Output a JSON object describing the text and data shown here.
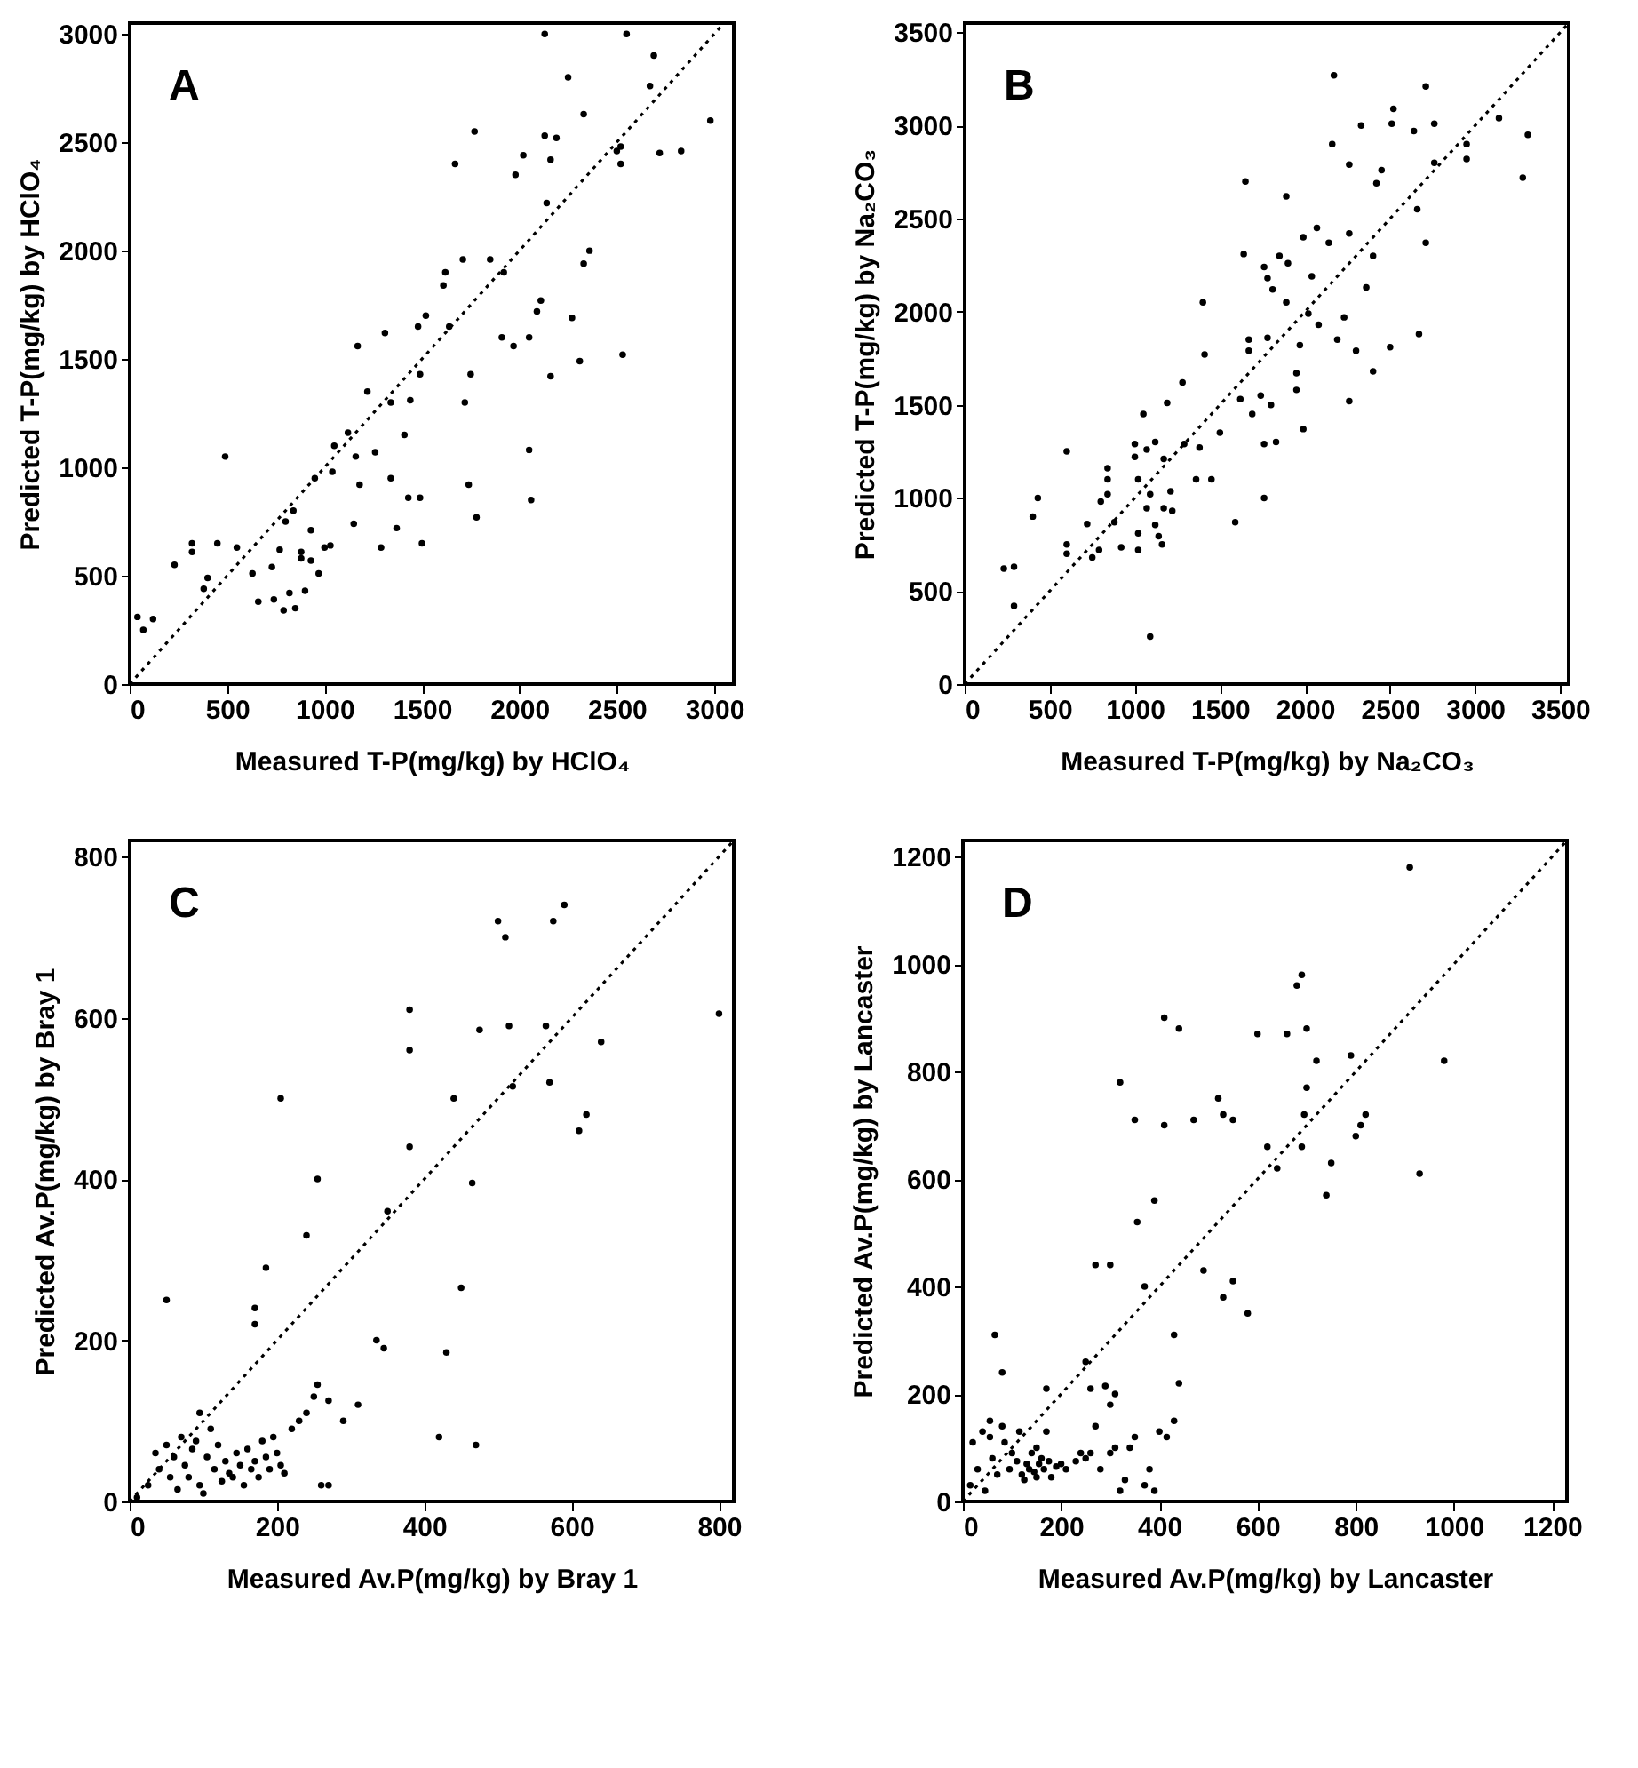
{
  "chart_data": [
    {
      "type": "scatter",
      "xlabel": "Measured T-P(mg/kg) by HClO₄",
      "ylabel": "Predicted T-P(mg/kg) by HClO₄",
      "annotations": [
        "A"
      ],
      "xlim": [
        0,
        3100
      ],
      "ylim": [
        0,
        3050
      ],
      "xticks": [
        0,
        500,
        1000,
        1500,
        2000,
        2500,
        3000
      ],
      "yticks": [
        0,
        500,
        1000,
        1500,
        2000,
        2500,
        3000
      ],
      "series": [
        {
          "marker": "circle",
          "color": "#000000",
          "x": [
            40,
            120,
            70,
            230,
            320,
            320,
            450,
            400,
            380,
            550,
            490,
            630,
            660,
            730,
            740,
            790,
            820,
            850,
            770,
            800,
            840,
            880,
            900,
            880,
            930,
            970,
            930,
            950,
            1000,
            1030,
            1040,
            1050,
            1120,
            1150,
            1160,
            1170,
            1180,
            1220,
            1260,
            1290,
            1310,
            1340,
            1340,
            1370,
            1410,
            1430,
            1440,
            1490,
            1500,
            1490,
            1480,
            1520,
            1610,
            1620,
            1640,
            1670,
            1710,
            1720,
            1740,
            1770,
            1780,
            1750,
            1850,
            1920,
            1910,
            1970,
            1980,
            2020,
            2050,
            2060,
            2050,
            2090,
            2110,
            2130,
            2140,
            2160,
            2190,
            2160,
            2270,
            2310,
            2330,
            2360,
            2330,
            2250,
            2130,
            2520,
            2500,
            2530,
            2520,
            2550,
            2670,
            2690,
            2720,
            2830,
            2980
          ],
          "values": [
            310,
            300,
            250,
            550,
            650,
            610,
            650,
            490,
            440,
            630,
            1050,
            510,
            380,
            540,
            390,
            340,
            420,
            350,
            620,
            750,
            800,
            610,
            430,
            580,
            570,
            510,
            710,
            950,
            630,
            640,
            980,
            1100,
            1160,
            740,
            1050,
            1560,
            920,
            1350,
            1070,
            630,
            1620,
            1300,
            950,
            720,
            1150,
            860,
            1310,
            1430,
            650,
            860,
            1650,
            1700,
            1840,
            1900,
            1650,
            2400,
            1960,
            1300,
            920,
            2550,
            770,
            1430,
            1960,
            1900,
            1600,
            1560,
            2350,
            2440,
            1080,
            850,
            1600,
            1720,
            1770,
            2530,
            2220,
            2420,
            2520,
            1420,
            1690,
            1490,
            1940,
            2000,
            2630,
            2800,
            3000,
            2480,
            2460,
            1520,
            2400,
            3000,
            2760,
            2900,
            2450,
            2460,
            2600
          ]
        },
        {
          "type": "line",
          "color": "#000000",
          "line_style": "dotted",
          "x": [
            0,
            3050
          ],
          "values": [
            0,
            3050
          ]
        }
      ]
    },
    {
      "type": "scatter",
      "xlabel": "Measured T-P(mg/kg) by Na₂CO₃",
      "ylabel": "Predicted T-P(mg/kg) by Na₂CO₃",
      "annotations": [
        "B"
      ],
      "xlim": [
        0,
        3550
      ],
      "ylim": [
        0,
        3550
      ],
      "xticks": [
        0,
        500,
        1000,
        1500,
        2000,
        2500,
        3000,
        3500
      ],
      "yticks": [
        0,
        500,
        1000,
        1500,
        2000,
        2500,
        3000,
        3500
      ],
      "series": [
        {
          "marker": "circle",
          "color": "#000000",
          "x": [
            230,
            290,
            290,
            400,
            430,
            600,
            600,
            600,
            720,
            750,
            790,
            840,
            840,
            840,
            800,
            880,
            920,
            1000,
            1000,
            1020,
            1020,
            1020,
            1050,
            1070,
            1070,
            1090,
            1090,
            1120,
            1120,
            1140,
            1160,
            1170,
            1170,
            1210,
            1220,
            1190,
            1280,
            1290,
            1360,
            1380,
            1400,
            1410,
            1450,
            1500,
            1590,
            1620,
            1640,
            1650,
            1670,
            1670,
            1690,
            1740,
            1760,
            1760,
            1760,
            1780,
            1780,
            1800,
            1810,
            1830,
            1850,
            1890,
            1890,
            1900,
            1950,
            1950,
            1970,
            1990,
            1990,
            2040,
            2020,
            2080,
            2070,
            2140,
            2160,
            2170,
            2190,
            2230,
            2260,
            2260,
            2260,
            2300,
            2330,
            2360,
            2400,
            2400,
            2420,
            2450,
            2500,
            2520,
            2510,
            2640,
            2660,
            2670,
            2710,
            2710,
            2760,
            2760,
            2950,
            2950,
            3140,
            3280,
            3310
          ],
          "values": [
            620,
            630,
            420,
            900,
            1000,
            1250,
            700,
            750,
            860,
            680,
            720,
            1160,
            1100,
            1020,
            980,
            870,
            735,
            1290,
            1220,
            1100,
            810,
            720,
            1450,
            1260,
            945,
            255,
            1020,
            855,
            1300,
            795,
            750,
            945,
            1210,
            1035,
            930,
            1510,
            1620,
            1290,
            1100,
            1270,
            2050,
            1770,
            1100,
            1350,
            870,
            1530,
            2310,
            2700,
            1790,
            1850,
            1450,
            1550,
            1290,
            1000,
            2240,
            2180,
            1860,
            1500,
            2120,
            1300,
            2300,
            2620,
            2050,
            2260,
            1670,
            1580,
            1820,
            1370,
            2400,
            2190,
            1990,
            1930,
            2450,
            2370,
            2900,
            3270,
            1850,
            1970,
            1520,
            2420,
            2790,
            1790,
            3000,
            2130,
            2300,
            1680,
            2690,
            2760,
            1810,
            3090,
            3010,
            2970,
            2550,
            1880,
            2370,
            3210,
            3010,
            2800,
            2900,
            2820,
            3040,
            2720,
            2950
          ]
        },
        {
          "type": "line",
          "color": "#000000",
          "line_style": "dotted",
          "x": [
            0,
            3550
          ],
          "values": [
            0,
            3550
          ]
        }
      ]
    },
    {
      "type": "scatter",
      "xlabel": "Measured Av.P(mg/kg) by Bray 1",
      "ylabel": "Predicted Av.P(mg/kg) by Bray 1",
      "annotations": [
        "C"
      ],
      "xlim": [
        0,
        820
      ],
      "ylim": [
        0,
        820
      ],
      "xticks": [
        0,
        200,
        400,
        600,
        800
      ],
      "yticks": [
        0,
        200,
        400,
        600,
        800
      ],
      "series": [
        {
          "marker": "circle",
          "color": "#000000",
          "x": [
            10,
            25,
            35,
            40,
            50,
            55,
            60,
            65,
            70,
            75,
            80,
            85,
            90,
            95,
            100,
            105,
            110,
            115,
            120,
            125,
            130,
            135,
            140,
            145,
            150,
            155,
            160,
            165,
            170,
            175,
            180,
            185,
            190,
            195,
            200,
            205,
            210,
            220,
            230,
            240,
            250,
            255,
            260,
            270,
            50,
            95,
            170,
            170,
            185,
            205,
            240,
            255,
            270,
            290,
            310,
            335,
            345,
            350,
            380,
            380,
            380,
            440,
            430,
            420,
            465,
            450,
            470,
            510,
            500,
            515,
            475,
            565,
            575,
            590,
            520,
            570,
            620,
            610,
            640,
            800
          ],
          "values": [
            5,
            20,
            60,
            40,
            70,
            30,
            55,
            15,
            80,
            45,
            30,
            65,
            75,
            20,
            10,
            55,
            90,
            40,
            70,
            25,
            50,
            35,
            30,
            60,
            45,
            20,
            65,
            40,
            50,
            30,
            75,
            55,
            40,
            80,
            60,
            45,
            35,
            90,
            100,
            110,
            130,
            145,
            20,
            20,
            250,
            110,
            240,
            220,
            290,
            500,
            330,
            400,
            125,
            100,
            120,
            200,
            190,
            360,
            610,
            560,
            440,
            500,
            185,
            80,
            395,
            265,
            70,
            700,
            720,
            590,
            585,
            590,
            720,
            740,
            515,
            520,
            480,
            460,
            570,
            605
          ]
        },
        {
          "type": "line",
          "color": "#000000",
          "line_style": "dotted",
          "x": [
            0,
            820
          ],
          "values": [
            0,
            820
          ]
        }
      ]
    },
    {
      "type": "scatter",
      "xlabel": "Measured Av.P(mg/kg) by Lancaster",
      "ylabel": "Predicted Av.P(mg/kg) by Lancaster",
      "annotations": [
        "D"
      ],
      "xlim": [
        0,
        1230
      ],
      "ylim": [
        0,
        1230
      ],
      "xticks": [
        0,
        200,
        400,
        600,
        800,
        1000,
        1200
      ],
      "yticks": [
        0,
        200,
        400,
        600,
        800,
        1000,
        1200
      ],
      "series": [
        {
          "marker": "circle",
          "color": "#000000",
          "x": [
            15,
            20,
            30,
            40,
            45,
            55,
            60,
            70,
            80,
            85,
            95,
            100,
            110,
            115,
            120,
            125,
            130,
            135,
            140,
            145,
            150,
            150,
            155,
            160,
            165,
            170,
            175,
            180,
            190,
            200,
            210,
            230,
            240,
            250,
            260,
            270,
            280,
            300,
            310,
            320,
            330,
            340,
            350,
            370,
            380,
            390,
            400,
            415,
            65,
            80,
            55,
            170,
            250,
            260,
            290,
            300,
            310,
            355,
            300,
            270,
            320,
            350,
            410,
            440,
            410,
            430,
            440,
            430,
            370,
            390,
            470,
            520,
            530,
            550,
            490,
            550,
            530,
            580,
            620,
            640,
            600,
            660,
            680,
            690,
            700,
            700,
            720,
            695,
            690,
            740,
            750,
            790,
            800,
            810,
            820,
            910,
            930,
            980
          ],
          "values": [
            30,
            110,
            60,
            130,
            20,
            120,
            80,
            50,
            140,
            110,
            60,
            90,
            75,
            130,
            50,
            40,
            70,
            60,
            90,
            55,
            45,
            100,
            70,
            80,
            60,
            130,
            75,
            45,
            65,
            70,
            60,
            75,
            90,
            80,
            90,
            140,
            60,
            90,
            100,
            20,
            40,
            100,
            120,
            30,
            60,
            20,
            130,
            120,
            310,
            240,
            150,
            210,
            260,
            210,
            215,
            180,
            200,
            520,
            440,
            440,
            780,
            710,
            900,
            880,
            700,
            310,
            220,
            150,
            400,
            560,
            710,
            750,
            720,
            710,
            430,
            410,
            380,
            350,
            660,
            620,
            870,
            870,
            960,
            980,
            880,
            770,
            820,
            720,
            660,
            570,
            630,
            830,
            680,
            700,
            720,
            1180,
            610,
            820
          ]
        },
        {
          "type": "line",
          "color": "#000000",
          "line_style": "dotted",
          "x": [
            0,
            1230
          ],
          "values": [
            0,
            1230
          ]
        }
      ]
    }
  ]
}
